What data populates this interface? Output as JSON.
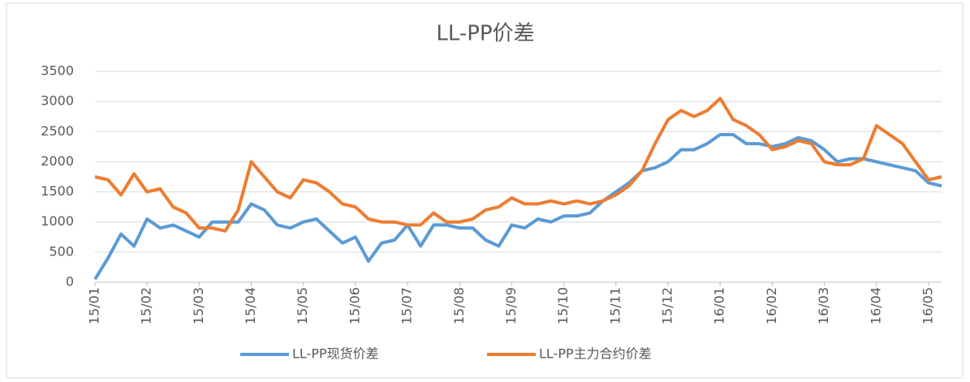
{
  "chart_data": {
    "type": "line",
    "title": "LL-PP价差",
    "x": [
      0,
      0.25,
      0.5,
      0.75,
      1,
      1.25,
      1.5,
      1.75,
      2,
      2.25,
      2.5,
      2.75,
      3,
      3.25,
      3.5,
      3.75,
      4,
      4.25,
      4.5,
      4.75,
      5,
      5.25,
      5.5,
      5.75,
      6,
      6.25,
      6.5,
      6.75,
      7,
      7.25,
      7.5,
      7.75,
      8,
      8.25,
      8.5,
      8.75,
      9,
      9.25,
      9.5,
      9.75,
      10,
      10.25,
      10.5,
      10.75,
      11,
      11.25,
      11.5,
      11.75,
      12,
      12.25,
      12.5,
      12.75,
      13,
      13.25,
      13.5,
      13.75,
      14,
      14.25,
      14.5,
      14.75,
      15,
      15.25,
      15.5,
      15.75,
      16,
      16.25
    ],
    "series": [
      {
        "name": "LL-PP现货价差",
        "color": "#5b9bd5",
        "values": [
          50,
          400,
          800,
          600,
          1050,
          900,
          950,
          850,
          750,
          1000,
          1000,
          1000,
          1300,
          1200,
          950,
          900,
          1000,
          1050,
          850,
          650,
          750,
          350,
          650,
          700,
          950,
          600,
          950,
          950,
          900,
          900,
          700,
          600,
          950,
          900,
          1050,
          1000,
          1100,
          1100,
          1150,
          1350,
          1500,
          1650,
          1850,
          1900,
          2000,
          2200,
          2200,
          2300,
          2450,
          2450,
          2300,
          2300,
          2250,
          2300,
          2400,
          2350,
          2200,
          2000,
          2050,
          2050,
          2000,
          1950,
          1900,
          1850,
          1650,
          1600
        ]
      },
      {
        "name": "LL-PP主力合约价差",
        "color": "#ed7d31",
        "values": [
          1750,
          1700,
          1450,
          1800,
          1500,
          1550,
          1250,
          1150,
          900,
          900,
          850,
          1200,
          2000,
          1750,
          1500,
          1400,
          1700,
          1650,
          1500,
          1300,
          1250,
          1050,
          1000,
          1000,
          950,
          950,
          1150,
          1000,
          1000,
          1050,
          1200,
          1250,
          1400,
          1300,
          1300,
          1350,
          1300,
          1350,
          1300,
          1350,
          1450,
          1600,
          1850,
          2300,
          2700,
          2850,
          2750,
          2850,
          3050,
          2700,
          2600,
          2450,
          2200,
          2250,
          2350,
          2300,
          2000,
          1950,
          1950,
          2050,
          2600,
          2450,
          2300,
          2000,
          1700,
          1750
        ]
      }
    ],
    "xlim": [
      0,
      16.25
    ],
    "xticks": [
      {
        "value": 0,
        "label": "15/01"
      },
      {
        "value": 1,
        "label": "15/02"
      },
      {
        "value": 2,
        "label": "15/03"
      },
      {
        "value": 3,
        "label": "15/04"
      },
      {
        "value": 4,
        "label": "15/05"
      },
      {
        "value": 5,
        "label": "15/06"
      },
      {
        "value": 6,
        "label": "15/07"
      },
      {
        "value": 7,
        "label": "15/08"
      },
      {
        "value": 8,
        "label": "15/09"
      },
      {
        "value": 9,
        "label": "15/10"
      },
      {
        "value": 10,
        "label": "15/11"
      },
      {
        "value": 11,
        "label": "15/12"
      },
      {
        "value": 12,
        "label": "16/01"
      },
      {
        "value": 13,
        "label": "16/02"
      },
      {
        "value": 14,
        "label": "16/03"
      },
      {
        "value": 15,
        "label": "16/04"
      },
      {
        "value": 16,
        "label": "16/05"
      }
    ],
    "ylim": [
      0,
      3500
    ],
    "yticks": [
      0,
      500,
      1000,
      1500,
      2000,
      2500,
      3000,
      3500
    ],
    "grid": true
  }
}
